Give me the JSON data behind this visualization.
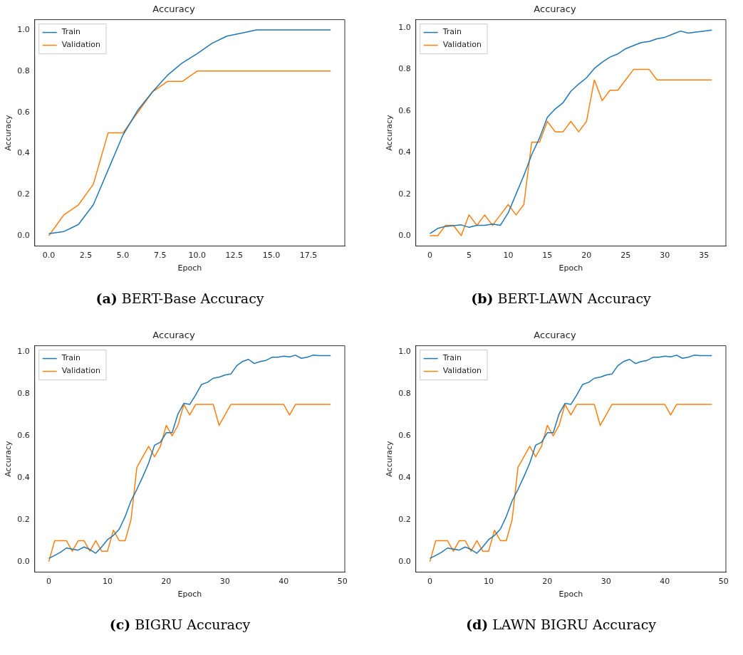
{
  "chart_data": [
    {
      "type": "line",
      "title": "Accuracy",
      "xlabel": "Epoch",
      "ylabel": "Accuracy",
      "legend": "top left",
      "grid": false,
      "annotations": [
        "(a) BERT-Base Accuracy"
      ],
      "xlim": [
        -0.95,
        19.95
      ],
      "ylim": [
        -0.05,
        1.05
      ],
      "xticks": [
        {
          "value": 0,
          "label": "0.0"
        },
        {
          "value": 2.5,
          "label": "2.5"
        },
        {
          "value": 5,
          "label": "5.0"
        },
        {
          "value": 7.5,
          "label": "7.5"
        },
        {
          "value": 10,
          "label": "10.0"
        },
        {
          "value": 12.5,
          "label": "12.5"
        },
        {
          "value": 15,
          "label": "15.0"
        },
        {
          "value": 17.5,
          "label": "17.5"
        }
      ],
      "yticks": [
        {
          "value": 0,
          "label": "0.0"
        },
        {
          "value": 0.2,
          "label": "0.2"
        },
        {
          "value": 0.4,
          "label": "0.4"
        },
        {
          "value": 0.6,
          "label": "0.6"
        },
        {
          "value": 0.8,
          "label": "0.8"
        },
        {
          "value": 1,
          "label": "1.0"
        }
      ],
      "x": [
        0,
        1,
        2,
        3,
        4,
        5,
        6,
        7,
        8,
        9,
        10,
        11,
        12,
        13,
        14,
        15,
        16,
        17,
        18,
        19
      ],
      "series": [
        {
          "name": "Train",
          "color": "#1f77b4",
          "values": [
            0.01,
            0.02,
            0.055,
            0.15,
            0.32,
            0.49,
            0.61,
            0.7,
            0.78,
            0.84,
            0.885,
            0.935,
            0.97,
            0.985,
            1.0,
            1.0,
            1.0,
            1.0,
            1.0,
            1.0
          ]
        },
        {
          "name": "Validation",
          "color": "#ff7f0e",
          "values": [
            0,
            0.1,
            0.15,
            0.25,
            0.5,
            0.5,
            0.6,
            0.7,
            0.75,
            0.75,
            0.8,
            0.8,
            0.8,
            0.8,
            0.8,
            0.8,
            0.8,
            0.8,
            0.8,
            0.8
          ]
        }
      ]
    },
    {
      "type": "line",
      "title": "Accuracy",
      "xlabel": "Epoch",
      "ylabel": "Accuracy",
      "legend": "top left",
      "grid": false,
      "annotations": [
        "(b) BERT-LAWN Accuracy"
      ],
      "xlim": [
        -1.8,
        37.8
      ],
      "ylim": [
        -0.05,
        1.04
      ],
      "xticks": [
        0,
        5,
        10,
        15,
        20,
        25,
        30,
        35
      ],
      "yticks": [
        {
          "value": 0,
          "label": "0.0"
        },
        {
          "value": 0.2,
          "label": "0.2"
        },
        {
          "value": 0.4,
          "label": "0.4"
        },
        {
          "value": 0.6,
          "label": "0.6"
        },
        {
          "value": 0.8,
          "label": "0.8"
        },
        {
          "value": 1,
          "label": "1.0"
        }
      ],
      "x": [
        0,
        1,
        2,
        3,
        4,
        5,
        6,
        7,
        8,
        9,
        10,
        11,
        12,
        13,
        14,
        15,
        16,
        17,
        18,
        19,
        20,
        21,
        22,
        23,
        24,
        25,
        26,
        27,
        28,
        29,
        30,
        31,
        32,
        33,
        34,
        35,
        36
      ],
      "series": [
        {
          "name": "Train",
          "color": "#1f77b4",
          "values": [
            0.01,
            0.035,
            0.045,
            0.048,
            0.052,
            0.04,
            0.05,
            0.05,
            0.056,
            0.05,
            0.11,
            0.2,
            0.29,
            0.39,
            0.47,
            0.57,
            0.61,
            0.64,
            0.695,
            0.73,
            0.76,
            0.805,
            0.835,
            0.86,
            0.875,
            0.9,
            0.915,
            0.93,
            0.935,
            0.948,
            0.955,
            0.97,
            0.985,
            0.975,
            0.98,
            0.985,
            0.99
          ]
        },
        {
          "name": "Validation",
          "color": "#ff7f0e",
          "values": [
            0,
            0,
            0.05,
            0.05,
            0,
            0.1,
            0.05,
            0.1,
            0.05,
            0.1,
            0.15,
            0.1,
            0.15,
            0.45,
            0.45,
            0.55,
            0.5,
            0.5,
            0.55,
            0.5,
            0.55,
            0.75,
            0.65,
            0.7,
            0.7,
            0.75,
            0.8,
            0.8,
            0.8,
            0.75,
            0.75,
            0.75,
            0.75,
            0.75,
            0.75,
            0.75,
            0.75
          ]
        }
      ]
    },
    {
      "type": "line",
      "title": "Accuracy",
      "xlabel": "Epoch",
      "ylabel": "Accuracy",
      "legend": "top left",
      "grid": false,
      "annotations": [
        "(c) BIGRU Accuracy"
      ],
      "xlim": [
        -2.4,
        50.4
      ],
      "ylim": [
        -0.05,
        1.03
      ],
      "xticks": [
        0,
        10,
        20,
        30,
        40,
        50
      ],
      "yticks": [
        {
          "value": 0,
          "label": "0.0"
        },
        {
          "value": 0.2,
          "label": "0.2"
        },
        {
          "value": 0.4,
          "label": "0.4"
        },
        {
          "value": 0.6,
          "label": "0.6"
        },
        {
          "value": 0.8,
          "label": "0.8"
        },
        {
          "value": 1,
          "label": "1.0"
        }
      ],
      "x": [
        0,
        1,
        2,
        3,
        4,
        5,
        6,
        7,
        8,
        9,
        10,
        11,
        12,
        13,
        14,
        15,
        16,
        17,
        18,
        19,
        20,
        21,
        22,
        23,
        24,
        25,
        26,
        27,
        28,
        29,
        30,
        31,
        32,
        33,
        34,
        35,
        36,
        37,
        38,
        39,
        40,
        41,
        42,
        43,
        44,
        45,
        46,
        47,
        48
      ],
      "series": [
        {
          "name": "Train",
          "color": "#1f77b4",
          "values": [
            0.015,
            0.03,
            0.045,
            0.065,
            0.06,
            0.055,
            0.07,
            0.058,
            0.04,
            0.07,
            0.105,
            0.125,
            0.155,
            0.215,
            0.29,
            0.345,
            0.405,
            0.47,
            0.555,
            0.57,
            0.615,
            0.615,
            0.705,
            0.755,
            0.75,
            0.795,
            0.845,
            0.855,
            0.875,
            0.88,
            0.89,
            0.895,
            0.935,
            0.955,
            0.965,
            0.945,
            0.955,
            0.96,
            0.975,
            0.975,
            0.98,
            0.977,
            0.985,
            0.97,
            0.975,
            0.985,
            0.983,
            0.983,
            0.983
          ]
        },
        {
          "name": "Validation",
          "color": "#ff7f0e",
          "values": [
            0,
            0.1,
            0.1,
            0.1,
            0.05,
            0.1,
            0.1,
            0.05,
            0.1,
            0.05,
            0.05,
            0.15,
            0.1,
            0.1,
            0.2,
            0.45,
            0.5,
            0.55,
            0.5,
            0.55,
            0.65,
            0.6,
            0.65,
            0.75,
            0.7,
            0.75,
            0.75,
            0.75,
            0.75,
            0.65,
            0.7,
            0.75,
            0.75,
            0.75,
            0.75,
            0.75,
            0.75,
            0.75,
            0.75,
            0.75,
            0.75,
            0.7,
            0.75,
            0.75,
            0.75,
            0.75,
            0.75,
            0.75,
            0.75
          ]
        }
      ]
    },
    {
      "type": "line",
      "title": "Accuracy",
      "xlabel": "Epoch",
      "ylabel": "Accuracy",
      "legend": "top left",
      "grid": false,
      "annotations": [
        "(d) LAWN BIGRU Accuracy"
      ],
      "xlim": [
        -2.4,
        50.4
      ],
      "ylim": [
        -0.05,
        1.03
      ],
      "xticks": [
        0,
        10,
        20,
        30,
        40,
        50
      ],
      "yticks": [
        {
          "value": 0,
          "label": "0.0"
        },
        {
          "value": 0.2,
          "label": "0.2"
        },
        {
          "value": 0.4,
          "label": "0.4"
        },
        {
          "value": 0.6,
          "label": "0.6"
        },
        {
          "value": 0.8,
          "label": "0.8"
        },
        {
          "value": 1,
          "label": "1.0"
        }
      ],
      "x": [
        0,
        1,
        2,
        3,
        4,
        5,
        6,
        7,
        8,
        9,
        10,
        11,
        12,
        13,
        14,
        15,
        16,
        17,
        18,
        19,
        20,
        21,
        22,
        23,
        24,
        25,
        26,
        27,
        28,
        29,
        30,
        31,
        32,
        33,
        34,
        35,
        36,
        37,
        38,
        39,
        40,
        41,
        42,
        43,
        44,
        45,
        46,
        47,
        48
      ],
      "series": [
        {
          "name": "Train",
          "color": "#1f77b4",
          "values": [
            0.015,
            0.03,
            0.045,
            0.065,
            0.06,
            0.055,
            0.07,
            0.058,
            0.04,
            0.07,
            0.105,
            0.125,
            0.155,
            0.215,
            0.29,
            0.345,
            0.405,
            0.47,
            0.555,
            0.57,
            0.615,
            0.615,
            0.705,
            0.755,
            0.75,
            0.795,
            0.845,
            0.855,
            0.875,
            0.88,
            0.89,
            0.895,
            0.935,
            0.955,
            0.965,
            0.945,
            0.955,
            0.96,
            0.975,
            0.975,
            0.98,
            0.977,
            0.985,
            0.97,
            0.975,
            0.985,
            0.983,
            0.983,
            0.983
          ]
        },
        {
          "name": "Validation",
          "color": "#ff7f0e",
          "values": [
            0,
            0.1,
            0.1,
            0.1,
            0.05,
            0.1,
            0.1,
            0.05,
            0.1,
            0.05,
            0.05,
            0.15,
            0.1,
            0.1,
            0.2,
            0.45,
            0.5,
            0.55,
            0.5,
            0.55,
            0.65,
            0.6,
            0.65,
            0.75,
            0.7,
            0.75,
            0.75,
            0.75,
            0.75,
            0.65,
            0.7,
            0.75,
            0.75,
            0.75,
            0.75,
            0.75,
            0.75,
            0.75,
            0.75,
            0.75,
            0.75,
            0.7,
            0.75,
            0.75,
            0.75,
            0.75,
            0.75,
            0.75,
            0.75
          ]
        }
      ]
    }
  ]
}
